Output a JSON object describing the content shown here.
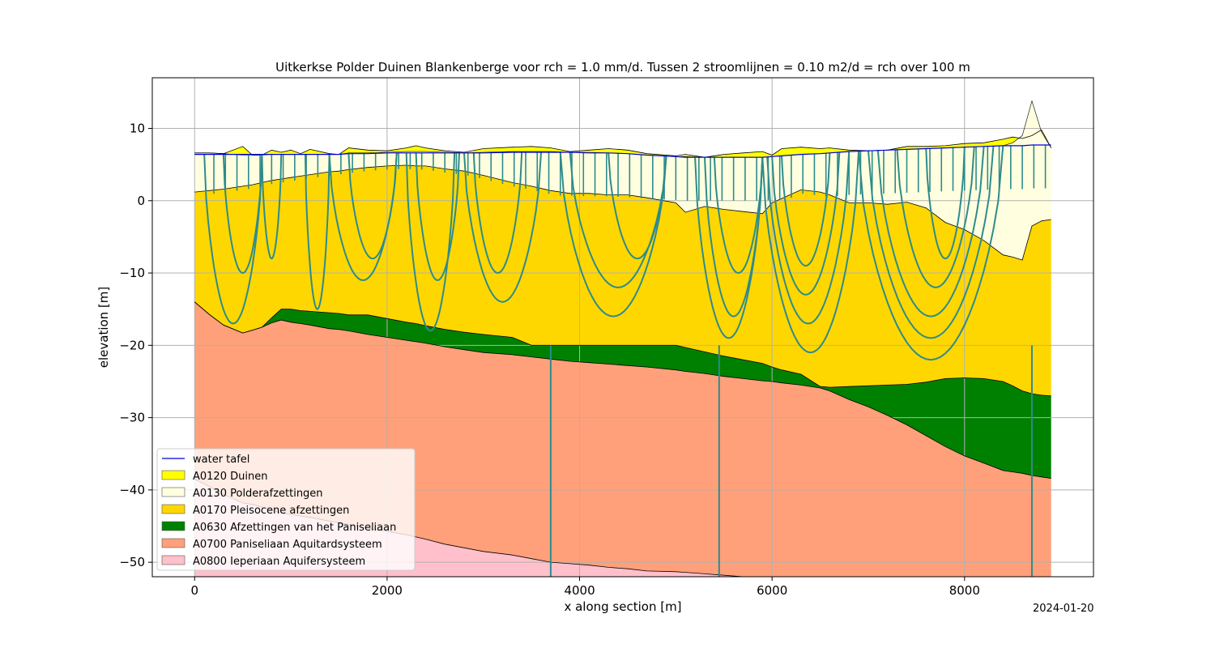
{
  "chart_data": {
    "type": "area",
    "title": "Uitkerkse Polder Duinen Blankenberge voor rch = 1.0 mm/d. Tussen 2 stroomlijnen = 0.10 m2/d = rch over 100 m",
    "xlabel": "x along section [m]",
    "ylabel": "elevation [m]",
    "xlim": [
      -440,
      9340
    ],
    "ylim": [
      -52,
      17
    ],
    "xticks": [
      0,
      2000,
      4000,
      6000,
      8000
    ],
    "yticks": [
      -50,
      -40,
      -30,
      -20,
      -10,
      0,
      10
    ],
    "grid": true,
    "legend_position": "lower-left",
    "date": "2024-01-20",
    "legend": [
      {
        "label": "water tafel",
        "kind": "line",
        "color": "#0000dd"
      },
      {
        "label": "A0120 Duinen",
        "kind": "patch",
        "color": "#ffff00"
      },
      {
        "label": "A0130 Polderafzettingen",
        "kind": "patch",
        "color": "#ffffe0"
      },
      {
        "label": "A0170 Pleisocene afzettingen",
        "kind": "patch",
        "color": "#ffd700"
      },
      {
        "label": "A0630 Afzettingen van het Paniseliaan",
        "kind": "patch",
        "color": "#008000"
      },
      {
        "label": "A0700 Paniseliaan Aquitardsysteem",
        "kind": "patch",
        "color": "#ffa07a"
      },
      {
        "label": "A0800 Ieperiaan Aquifersysteem",
        "kind": "patch",
        "color": "#ffc0cb"
      }
    ],
    "x": [
      0,
      150,
      300,
      500,
      600,
      700,
      800,
      900,
      1000,
      1100,
      1200,
      1400,
      1500,
      1600,
      1800,
      2000,
      2200,
      2300,
      2400,
      2600,
      2800,
      3000,
      3300,
      3500,
      3700,
      3900,
      4100,
      4300,
      4500,
      4700,
      5000,
      5100,
      5300,
      5500,
      5700,
      5900,
      6000,
      6100,
      6300,
      6500,
      6600,
      6800,
      7000,
      7200,
      7400,
      7600,
      7800,
      8000,
      8200,
      8400,
      8500,
      8600,
      8700,
      8800,
      8900
    ],
    "series": [
      {
        "name": "ground surface",
        "values": [
          6.6,
          6.6,
          6.5,
          7.5,
          6.3,
          6.3,
          7.0,
          6.7,
          7.0,
          6.5,
          7.1,
          6.5,
          6.4,
          7.3,
          7.0,
          6.9,
          7.3,
          7.6,
          7.3,
          6.9,
          6.7,
          7.2,
          7.4,
          7.5,
          7.3,
          6.8,
          7.0,
          7.2,
          7.0,
          6.5,
          6.2,
          6.4,
          6.0,
          6.4,
          6.6,
          6.8,
          6.3,
          7.2,
          7.4,
          7.2,
          7.3,
          7.0,
          6.9,
          7.0,
          7.5,
          7.5,
          7.6,
          7.9,
          8.0,
          8.5,
          8.8,
          8.6,
          9.0,
          9.8,
          7.3
        ]
      },
      {
        "name": "A0120 Duinen",
        "values": [
          6.6,
          6.6,
          6.5,
          6.3,
          6.3,
          6.3,
          6.4,
          6.4,
          6.4,
          6.4,
          6.4,
          6.4,
          6.4,
          6.6,
          6.6,
          6.7,
          6.8,
          6.8,
          6.8,
          6.7,
          6.6,
          6.7,
          6.8,
          6.8,
          6.8,
          6.7,
          6.7,
          6.6,
          6.5,
          6.3,
          6.1,
          6.1,
          6.0,
          6.0,
          6.0,
          6.0,
          6.1,
          6.2,
          6.4,
          6.5,
          6.6,
          6.8,
          6.9,
          7.0,
          7.1,
          7.2,
          7.3,
          7.4,
          7.5,
          7.6,
          8.0,
          9.0,
          13.8,
          9.5,
          7.3
        ]
      },
      {
        "name": "water tafel",
        "values": [
          6.4,
          6.4,
          6.4,
          6.4,
          6.4,
          6.4,
          6.4,
          6.4,
          6.4,
          6.4,
          6.4,
          6.4,
          6.4,
          6.5,
          6.5,
          6.6,
          6.6,
          6.6,
          6.6,
          6.6,
          6.6,
          6.6,
          6.7,
          6.7,
          6.7,
          6.7,
          6.6,
          6.6,
          6.5,
          6.3,
          6.1,
          6.0,
          6.0,
          6.0,
          6.0,
          6.0,
          6.1,
          6.2,
          6.4,
          6.5,
          6.6,
          6.8,
          6.9,
          7.0,
          7.1,
          7.2,
          7.3,
          7.4,
          7.5,
          7.6,
          7.6,
          7.6,
          7.7,
          7.7,
          7.7
        ]
      },
      {
        "name": "A0130 Polderafzettingen",
        "values": [
          1.2,
          1.4,
          1.6,
          2.0,
          2.2,
          2.5,
          2.8,
          3.0,
          3.2,
          3.4,
          3.6,
          4.0,
          4.1,
          4.3,
          4.6,
          4.8,
          4.9,
          4.8,
          4.8,
          4.4,
          4.1,
          3.5,
          2.5,
          2.0,
          1.4,
          1.0,
          1.0,
          0.8,
          0.8,
          0.4,
          -0.3,
          -1.6,
          -0.8,
          -1.2,
          -1.5,
          -1.8,
          -0.3,
          0.3,
          1.5,
          1.2,
          0.8,
          -0.3,
          -0.3,
          -0.5,
          -0.2,
          -1.0,
          -3.0,
          -4.0,
          -5.5,
          -7.5,
          -7.8,
          -8.2,
          -3.5,
          -2.8,
          -2.6
        ]
      },
      {
        "name": "A0170 Pleisocene afzettingen",
        "values": [
          -14.0,
          -15.7,
          -17.2,
          -18.3,
          -17.9,
          -17.5,
          -16.2,
          -15.0,
          -15.0,
          -15.2,
          -15.3,
          -15.5,
          -15.6,
          -15.8,
          -15.8,
          -16.3,
          -16.8,
          -17.0,
          -17.3,
          -17.8,
          -18.2,
          -18.5,
          -18.9,
          -20.0,
          -20.0,
          -20.0,
          -20.0,
          -20.0,
          -20.0,
          -20.0,
          -20.0,
          -20.3,
          -20.9,
          -21.5,
          -22.0,
          -22.5,
          -23.0,
          -23.4,
          -24.0,
          -25.7,
          -25.8,
          -25.7,
          -25.6,
          -25.5,
          -25.4,
          -25.1,
          -24.6,
          -24.5,
          -24.6,
          -25.0,
          -25.6,
          -26.3,
          -26.7,
          -26.9,
          -27.0
        ]
      },
      {
        "name": "A0630 Afzettingen van het Paniseliaan",
        "values": [
          -14.0,
          -15.7,
          -17.2,
          -18.3,
          -17.9,
          -17.5,
          -16.9,
          -16.5,
          -16.8,
          -17.0,
          -17.2,
          -17.7,
          -17.8,
          -18.0,
          -18.5,
          -18.9,
          -19.3,
          -19.5,
          -19.7,
          -20.2,
          -20.6,
          -21.0,
          -21.3,
          -21.6,
          -21.9,
          -22.2,
          -22.4,
          -22.6,
          -22.8,
          -23.0,
          -23.4,
          -23.6,
          -23.9,
          -24.3,
          -24.6,
          -24.9,
          -25.0,
          -25.2,
          -25.5,
          -25.9,
          -26.3,
          -27.5,
          -28.5,
          -29.7,
          -31.0,
          -32.5,
          -34.0,
          -35.3,
          -36.3,
          -37.3,
          -37.5,
          -37.7,
          -38.0,
          -38.2,
          -38.4
        ]
      },
      {
        "name": "A0700 Paniseliaan Aquitardsysteem",
        "values": [
          -38.5,
          -39.5,
          -40.6,
          -41.8,
          -42.0,
          -42.4,
          -42.8,
          -43.2,
          -43.4,
          -43.6,
          -43.8,
          -44.3,
          -44.5,
          -44.8,
          -45.3,
          -45.7,
          -46.2,
          -46.5,
          -46.8,
          -47.5,
          -48.0,
          -48.5,
          -49.0,
          -49.5,
          -50.0,
          -50.2,
          -50.4,
          -50.7,
          -50.9,
          -51.2,
          -51.3,
          -51.4,
          -51.6,
          -51.8,
          -52.0,
          -52.0,
          -52.0,
          -52.0,
          -52.0,
          -52.0,
          -52.0,
          -52.0,
          -52.0,
          -52.0,
          -52.0,
          -52.0,
          -52.0,
          -52.0,
          -52.0,
          -52.0,
          -52.0,
          -52.0,
          -52.0,
          -52.0,
          -52.0
        ]
      }
    ],
    "bottom": -52.0
  }
}
